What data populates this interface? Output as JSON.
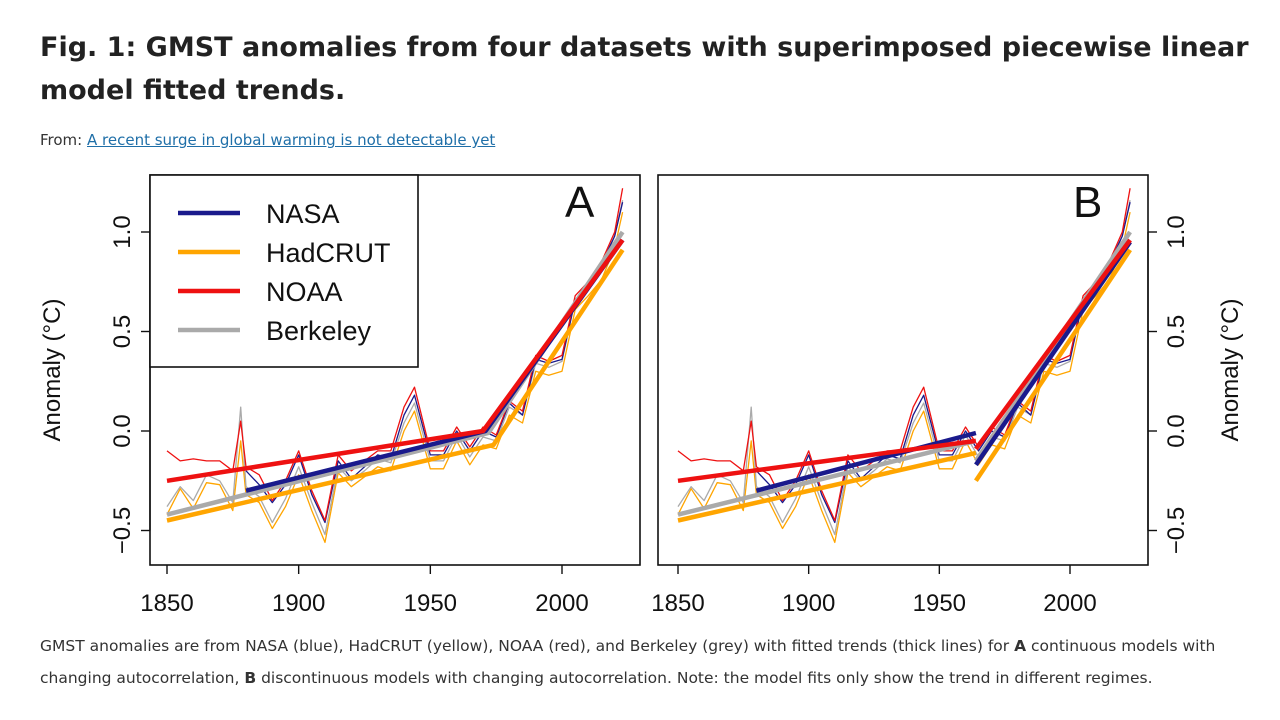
{
  "figure": {
    "title": "Fig. 1: GMST anomalies from four datasets with superimposed piecewise linear model fitted trends.",
    "source_prefix": "From:",
    "source_link": "A recent surge in global warming is not detectable yet"
  },
  "caption": {
    "p1": "GMST anomalies are from NASA (blue), HadCRUT (yellow), NOAA (red), and Berkeley (grey) with fitted trends (thick lines) for ",
    "bold_a": "A",
    "p2": " continuous models with changing autocorrelation, ",
    "bold_b": "B",
    "p3": " discontinuous models with changing autocorrelation. Note: the model fits only show the trend in different regimes."
  },
  "chart_data": [
    {
      "type": "line",
      "panel_label": "A",
      "ylabel": "Anomaly (°C)",
      "ylabel_side": "left",
      "xlim": [
        1845,
        2030
      ],
      "ylim": [
        -0.68,
        1.28
      ],
      "xticks": [
        "1850",
        "1900",
        "1950",
        "2000"
      ],
      "yticks": [
        "-0.5",
        "0.0",
        "0.5",
        "1.0"
      ],
      "legend": {
        "placement": "top-left",
        "entries": [
          "NASA",
          "HadCRUT",
          "NOAA",
          "Berkeley"
        ]
      },
      "trend_model": "continuous",
      "trends": [
        {
          "name": "NASA",
          "segments": [
            [
              [
                1880,
                -0.3
              ],
              [
                1971,
                0.0
              ],
              [
                2023,
                0.96
              ]
            ]
          ]
        },
        {
          "name": "HadCRUT",
          "segments": [
            [
              [
                1850,
                -0.45
              ],
              [
                1974,
                -0.07
              ],
              [
                2023,
                0.91
              ]
            ]
          ]
        },
        {
          "name": "NOAA",
          "segments": [
            [
              [
                1850,
                -0.25
              ],
              [
                1970,
                0.0
              ],
              [
                2023,
                0.96
              ]
            ]
          ]
        },
        {
          "name": "Berkeley",
          "segments": [
            [
              [
                1850,
                -0.42
              ],
              [
                1972,
                -0.01
              ],
              [
                2023,
                1.0
              ]
            ]
          ]
        }
      ]
    },
    {
      "type": "line",
      "panel_label": "B",
      "ylabel": "Anomaly (°C)",
      "ylabel_side": "right",
      "xlim": [
        1845,
        2030
      ],
      "ylim": [
        -0.68,
        1.28
      ],
      "xticks": [
        "1850",
        "1900",
        "1950",
        "2000"
      ],
      "yticks": [
        "-0.5",
        "0.0",
        "0.5",
        "1.0"
      ],
      "trend_model": "discontinuous",
      "trends": [
        {
          "name": "NASA",
          "segments": [
            [
              [
                1880,
                -0.3
              ],
              [
                1964,
                -0.01
              ]
            ],
            [
              [
                1964,
                -0.17
              ],
              [
                2023,
                0.95
              ]
            ]
          ]
        },
        {
          "name": "HadCRUT",
          "segments": [
            [
              [
                1850,
                -0.45
              ],
              [
                1964,
                -0.11
              ]
            ],
            [
              [
                1964,
                -0.25
              ],
              [
                2023,
                0.91
              ]
            ]
          ]
        },
        {
          "name": "NOAA",
          "segments": [
            [
              [
                1850,
                -0.25
              ],
              [
                1964,
                -0.05
              ]
            ],
            [
              [
                1964,
                -0.09
              ],
              [
                2023,
                0.96
              ]
            ]
          ]
        },
        {
          "name": "Berkeley",
          "segments": [
            [
              [
                1850,
                -0.42
              ],
              [
                1964,
                -0.05
              ]
            ],
            [
              [
                1964,
                -0.15
              ],
              [
                2023,
                1.0
              ]
            ]
          ]
        }
      ]
    }
  ],
  "series_data": {
    "x": [
      1850,
      1855,
      1860,
      1865,
      1870,
      1875,
      1878,
      1880,
      1885,
      1890,
      1895,
      1900,
      1905,
      1910,
      1915,
      1920,
      1925,
      1930,
      1935,
      1940,
      1944,
      1950,
      1955,
      1960,
      1965,
      1970,
      1975,
      1980,
      1985,
      1990,
      1995,
      2000,
      2005,
      2010,
      2015,
      2020,
      2023
    ],
    "series": [
      {
        "name": "NASA",
        "color": "#1a1a8c",
        "values": [
          null,
          null,
          null,
          null,
          null,
          null,
          null,
          -0.2,
          -0.27,
          -0.36,
          -0.27,
          -0.12,
          -0.32,
          -0.46,
          -0.15,
          -0.24,
          -0.18,
          -0.12,
          -0.14,
          0.08,
          0.18,
          -0.12,
          -0.12,
          0.0,
          -0.1,
          0.0,
          -0.03,
          0.14,
          0.08,
          0.36,
          0.34,
          0.36,
          0.66,
          0.72,
          0.84,
          0.98,
          1.15
        ]
      },
      {
        "name": "HadCRUT",
        "color": "#ffa500",
        "values": [
          -0.42,
          -0.29,
          -0.39,
          -0.26,
          -0.27,
          -0.4,
          -0.05,
          -0.32,
          -0.36,
          -0.49,
          -0.38,
          -0.22,
          -0.4,
          -0.56,
          -0.21,
          -0.28,
          -0.23,
          -0.18,
          -0.2,
          0.0,
          0.1,
          -0.19,
          -0.19,
          -0.05,
          -0.17,
          -0.07,
          -0.09,
          0.08,
          0.04,
          0.3,
          0.28,
          0.3,
          0.61,
          0.68,
          0.76,
          0.92,
          1.1
        ]
      },
      {
        "name": "NOAA",
        "color": "#ee1111",
        "values": [
          -0.1,
          -0.15,
          -0.14,
          -0.15,
          -0.15,
          -0.2,
          0.05,
          -0.18,
          -0.22,
          -0.35,
          -0.25,
          -0.1,
          -0.3,
          -0.45,
          -0.12,
          -0.2,
          -0.15,
          -0.1,
          -0.1,
          0.12,
          0.22,
          -0.1,
          -0.1,
          0.02,
          -0.08,
          0.02,
          -0.02,
          0.15,
          0.1,
          0.38,
          0.35,
          0.38,
          0.68,
          0.75,
          0.85,
          1.0,
          1.22
        ]
      },
      {
        "name": "Berkeley",
        "color": "#aaaaaa",
        "values": [
          -0.38,
          -0.28,
          -0.35,
          -0.22,
          -0.25,
          -0.36,
          0.12,
          -0.28,
          -0.33,
          -0.46,
          -0.34,
          -0.18,
          -0.36,
          -0.52,
          -0.18,
          -0.25,
          -0.2,
          -0.14,
          -0.16,
          0.04,
          0.14,
          -0.15,
          -0.15,
          -0.02,
          -0.13,
          -0.03,
          -0.05,
          0.12,
          0.08,
          0.34,
          0.32,
          0.35,
          0.66,
          0.72,
          0.82,
          0.98,
          1.16
        ]
      }
    ]
  }
}
